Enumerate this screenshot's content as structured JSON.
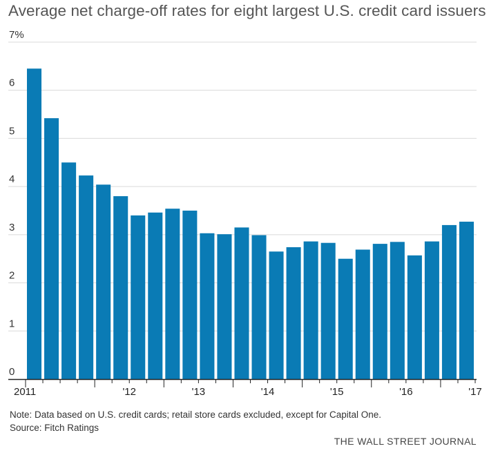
{
  "chart_data": {
    "type": "bar",
    "title": "Average net charge-off rates for eight largest U.S. credit card issuers",
    "xlabel": "",
    "ylabel": "",
    "ylim": [
      0,
      7
    ],
    "yticks": [
      "0",
      "1",
      "2",
      "3",
      "4",
      "5",
      "6",
      "7%"
    ],
    "year_labels": [
      "2011",
      "'12",
      "'13",
      "'14",
      "'15",
      "'16",
      "'17"
    ],
    "bar_color": "#0a7bb5",
    "grid": true,
    "categories": [
      "2011 Q1",
      "2011 Q2",
      "2011 Q3",
      "2011 Q4",
      "2012 Q1",
      "2012 Q2",
      "2012 Q3",
      "2012 Q4",
      "2013 Q1",
      "2013 Q2",
      "2013 Q3",
      "2013 Q4",
      "2014 Q1",
      "2014 Q2",
      "2014 Q3",
      "2014 Q4",
      "2015 Q1",
      "2015 Q2",
      "2015 Q3",
      "2015 Q4",
      "2016 Q1",
      "2016 Q2",
      "2016 Q3",
      "2016 Q4",
      "2017 Q1",
      "2017 Q2"
    ],
    "values": [
      6.45,
      5.42,
      4.5,
      4.23,
      4.04,
      3.8,
      3.4,
      3.46,
      3.54,
      3.5,
      3.03,
      3.01,
      3.15,
      2.99,
      2.65,
      2.74,
      2.86,
      2.83,
      2.5,
      2.69,
      2.81,
      2.85,
      2.57,
      2.86,
      3.2,
      3.27
    ]
  },
  "note": "Note: Data based on U.S. credit cards; retail store cards excluded, except for Capital One.",
  "source": "Source: Fitch Ratings",
  "brand": "THE WALL STREET JOURNAL"
}
